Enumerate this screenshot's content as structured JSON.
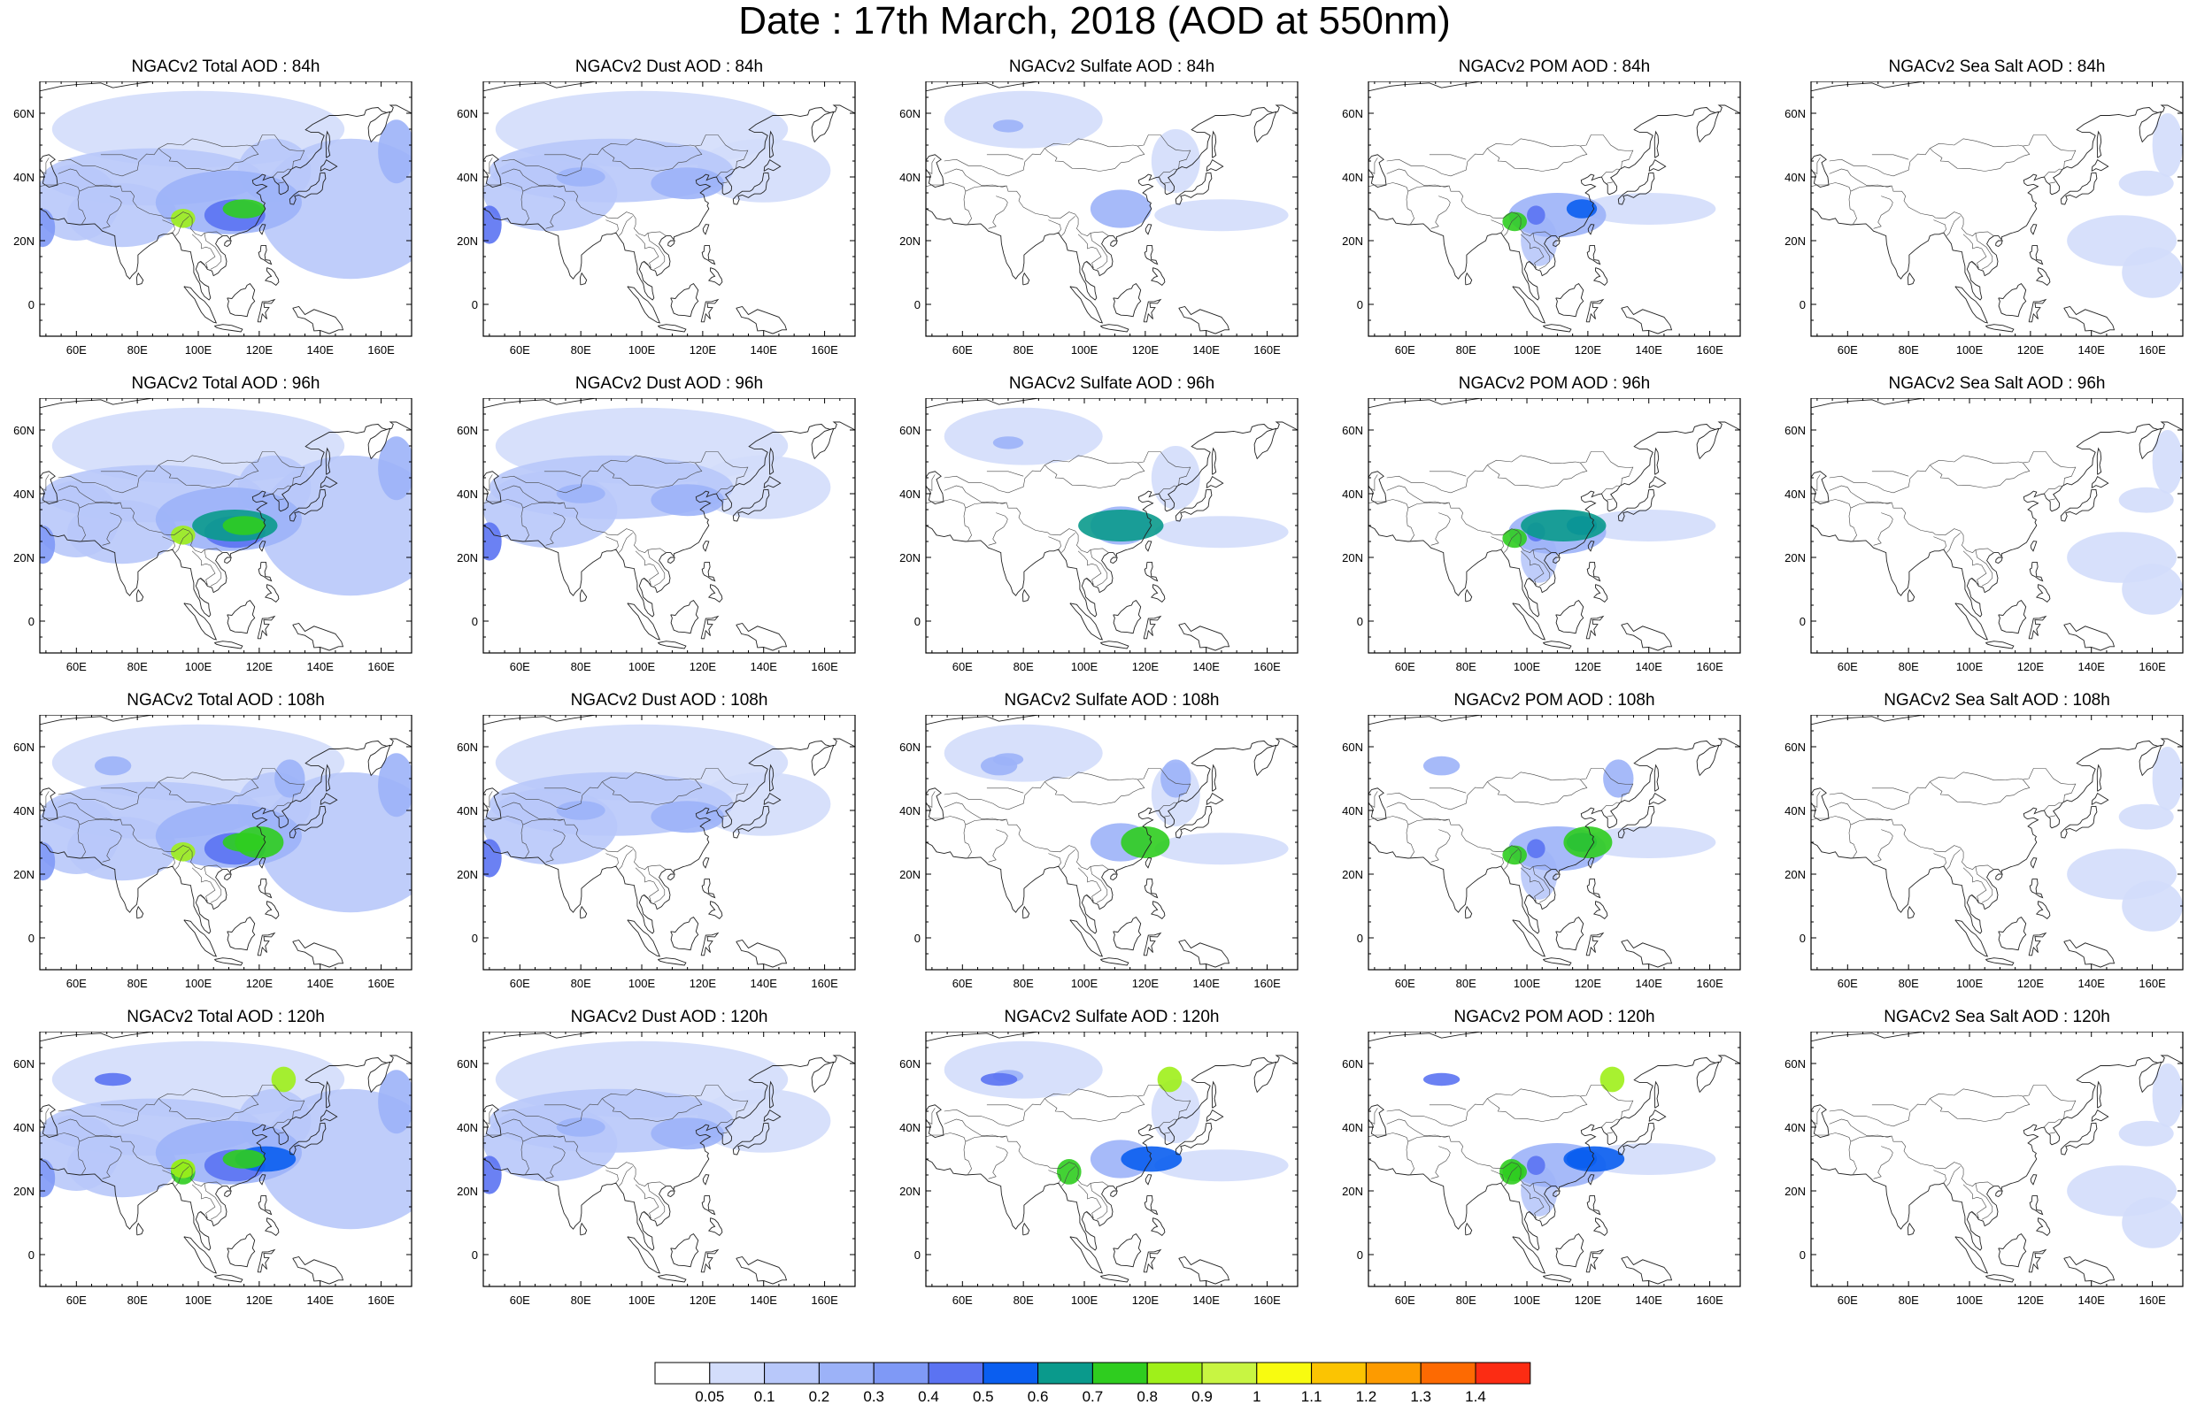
{
  "figure": {
    "title": "Date : 17th March, 2018 (AOD at 550nm)"
  },
  "axes": {
    "x_ticks": [
      "60E",
      "80E",
      "100E",
      "120E",
      "140E",
      "160E"
    ],
    "x_tick_values": [
      60,
      80,
      100,
      120,
      140,
      160
    ],
    "y_ticks": [
      "60N",
      "40N",
      "20N",
      "0"
    ],
    "y_tick_values": [
      60,
      40,
      20,
      0
    ],
    "lon_range": [
      48,
      170
    ],
    "lat_range": [
      -10,
      70
    ]
  },
  "panels": [
    [
      {
        "title": "NGACv2 Total AOD : 84h",
        "species": "total",
        "lead": "84h"
      },
      {
        "title": "NGACv2 Dust AOD : 84h",
        "species": "dust",
        "lead": "84h"
      },
      {
        "title": "NGACv2 Sulfate AOD : 84h",
        "species": "sulfate",
        "lead": "84h"
      },
      {
        "title": "NGACv2 POM AOD : 84h",
        "species": "pom",
        "lead": "84h"
      },
      {
        "title": "NGACv2 Sea Salt AOD : 84h",
        "species": "seasalt",
        "lead": "84h"
      }
    ],
    [
      {
        "title": "NGACv2 Total AOD : 96h",
        "species": "total",
        "lead": "96h"
      },
      {
        "title": "NGACv2 Dust AOD : 96h",
        "species": "dust",
        "lead": "96h"
      },
      {
        "title": "NGACv2 Sulfate AOD : 96h",
        "species": "sulfate",
        "lead": "96h"
      },
      {
        "title": "NGACv2 POM AOD : 96h",
        "species": "pom",
        "lead": "96h"
      },
      {
        "title": "NGACv2 Sea Salt AOD : 96h",
        "species": "seasalt",
        "lead": "96h"
      }
    ],
    [
      {
        "title": "NGACv2 Total AOD : 108h",
        "species": "total",
        "lead": "108h"
      },
      {
        "title": "NGACv2 Dust AOD : 108h",
        "species": "dust",
        "lead": "108h"
      },
      {
        "title": "NGACv2 Sulfate AOD : 108h",
        "species": "sulfate",
        "lead": "108h"
      },
      {
        "title": "NGACv2 POM AOD : 108h",
        "species": "pom",
        "lead": "108h"
      },
      {
        "title": "NGACv2 Sea Salt AOD : 108h",
        "species": "seasalt",
        "lead": "108h"
      }
    ],
    [
      {
        "title": "NGACv2 Total AOD : 120h",
        "species": "total",
        "lead": "120h"
      },
      {
        "title": "NGACv2 Dust AOD : 120h",
        "species": "dust",
        "lead": "120h"
      },
      {
        "title": "NGACv2 Sulfate AOD : 120h",
        "species": "sulfate",
        "lead": "120h"
      },
      {
        "title": "NGACv2 POM AOD : 120h",
        "species": "pom",
        "lead": "120h"
      },
      {
        "title": "NGACv2 Sea Salt  AOD : 120h",
        "species": "seasalt",
        "lead": "120h"
      }
    ]
  ],
  "colorbar": {
    "labels": [
      "0.05",
      "0.1",
      "0.2",
      "0.3",
      "0.4",
      "0.5",
      "0.6",
      "0.7",
      "0.8",
      "0.9",
      "1",
      "1.1",
      "1.2",
      "1.3",
      "1.4"
    ],
    "colors": [
      "#ffffff",
      "#d3ddfb",
      "#b8c8fa",
      "#9cb2f8",
      "#7f99f6",
      "#5b73f2",
      "#0a5ef0",
      "#0a9a8c",
      "#2fcd1f",
      "#9ff01a",
      "#c8f542",
      "#f8fb10",
      "#fbc402",
      "#fd9b00",
      "#fd6a02",
      "#fc2c13"
    ]
  }
}
